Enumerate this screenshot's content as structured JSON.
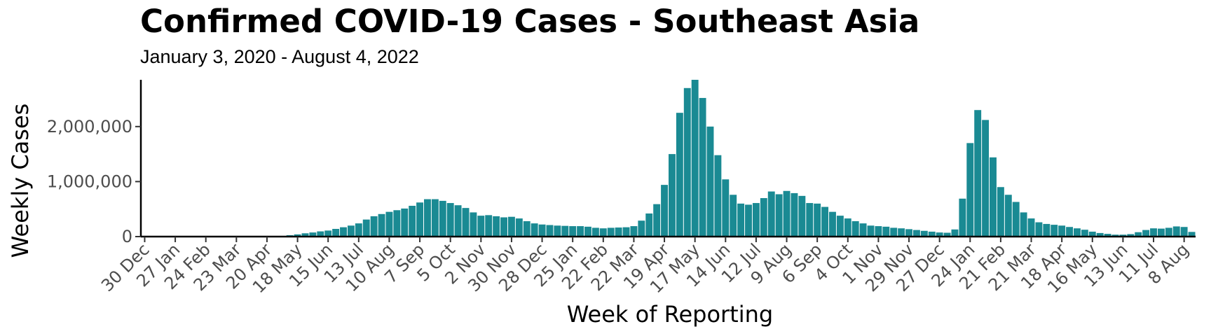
{
  "chart_data": {
    "type": "bar",
    "title": "Confirmed COVID-19 Cases - Southeast Asia",
    "subtitle": "January 3, 2020 - August 4, 2022",
    "xlabel": "Week of Reporting",
    "ylabel": "Weekly Cases",
    "ylim": [
      0,
      2850000
    ],
    "y_ticks": [
      0,
      1000000,
      2000000
    ],
    "y_tick_labels": [
      "0",
      "1,000,000",
      "2,000,000"
    ],
    "x_tick_labels": [
      "30 Dec",
      "27 Jan",
      "24 Feb",
      "23 Mar",
      "20 Apr",
      "18 May",
      "15 Jun",
      "13 Jul",
      "10 Aug",
      "7 Sep",
      "5 Oct",
      "2 Nov",
      "30 Nov",
      "28 Dec",
      "25 Jan",
      "22 Feb",
      "22 Mar",
      "19 Apr",
      "17 May",
      "14 Jun",
      "12 Jul",
      "9 Aug",
      "6 Sep",
      "4 Oct",
      "1 Nov",
      "29 Nov",
      "27 Dec",
      "24 Jan",
      "21 Feb",
      "21 Mar",
      "18 Apr",
      "16 May",
      "13 Jun",
      "11 Jul",
      "8 Aug"
    ],
    "x_tick_weeks": [
      0,
      4,
      8,
      12,
      16,
      20,
      24,
      28,
      32,
      36,
      40,
      44,
      48,
      52,
      56,
      60,
      64,
      68,
      72,
      76,
      80,
      84,
      88,
      92,
      96,
      100,
      104,
      108,
      112,
      116,
      120,
      124,
      128,
      132,
      136
    ],
    "bar_color": "#1a8a93",
    "grid": false,
    "legend": "none",
    "values": [
      0,
      0,
      0,
      0,
      0,
      0,
      0,
      0,
      0,
      0,
      0,
      0,
      0,
      0,
      0,
      0,
      0,
      5000,
      10000,
      25000,
      40000,
      60000,
      75000,
      95000,
      110000,
      140000,
      170000,
      200000,
      240000,
      310000,
      370000,
      410000,
      450000,
      480000,
      510000,
      560000,
      620000,
      680000,
      680000,
      650000,
      610000,
      570000,
      520000,
      440000,
      380000,
      390000,
      370000,
      350000,
      360000,
      330000,
      280000,
      240000,
      220000,
      210000,
      200000,
      195000,
      190000,
      190000,
      180000,
      160000,
      150000,
      160000,
      165000,
      170000,
      190000,
      290000,
      420000,
      590000,
      940000,
      1500000,
      2250000,
      2700000,
      2850000,
      2520000,
      2000000,
      1480000,
      1040000,
      760000,
      600000,
      580000,
      610000,
      700000,
      820000,
      770000,
      830000,
      790000,
      740000,
      610000,
      600000,
      540000,
      450000,
      380000,
      330000,
      280000,
      240000,
      200000,
      190000,
      180000,
      160000,
      150000,
      135000,
      120000,
      105000,
      90000,
      75000,
      70000,
      130000,
      690000,
      1700000,
      2300000,
      2120000,
      1440000,
      900000,
      760000,
      630000,
      440000,
      330000,
      260000,
      230000,
      215000,
      200000,
      175000,
      150000,
      125000,
      90000,
      65000,
      50000,
      35000,
      35000,
      45000,
      80000,
      120000,
      150000,
      145000,
      160000,
      185000,
      175000,
      85000
    ]
  }
}
